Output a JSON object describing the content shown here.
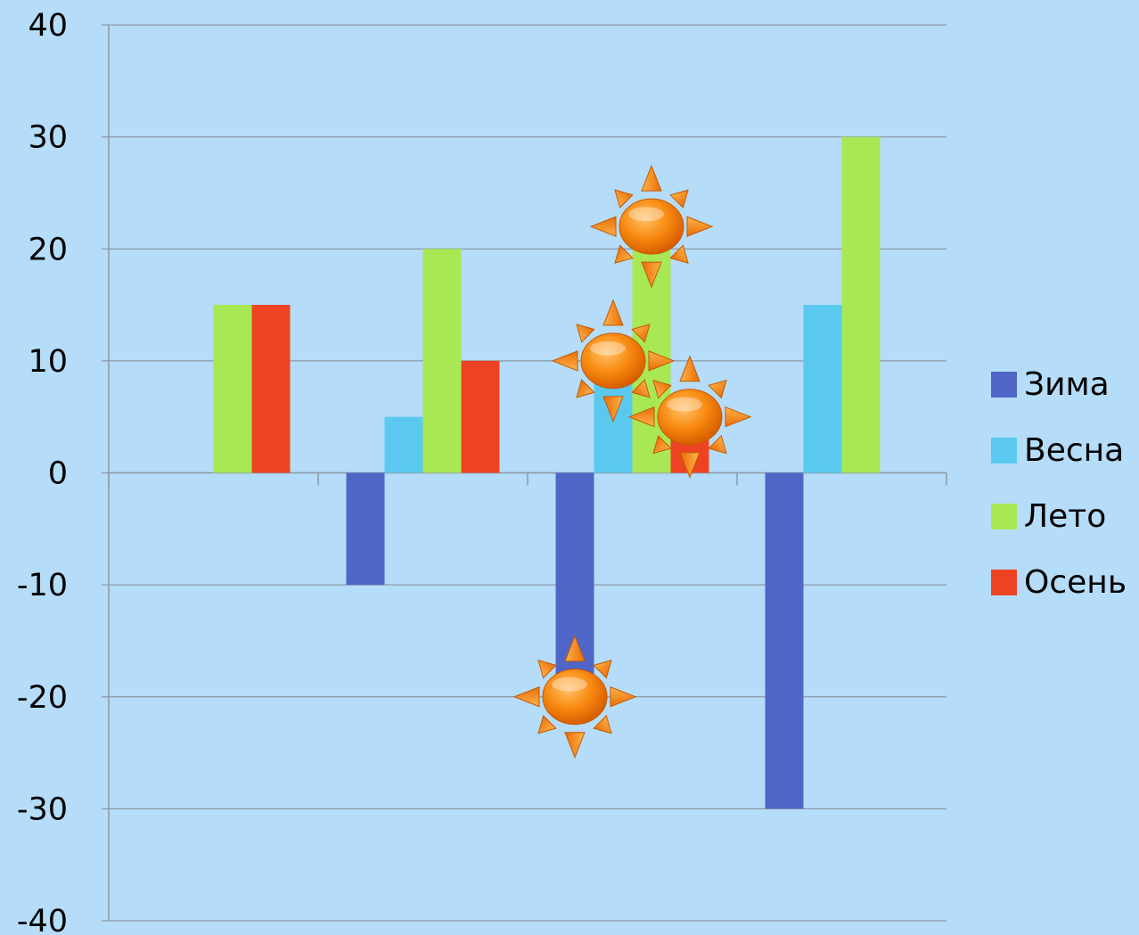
{
  "chart_data": {
    "type": "bar",
    "categories": [
      "",
      "",
      "",
      ""
    ],
    "series": [
      {
        "name": "Зима",
        "color": "#5066c6",
        "values": [
          0,
          -10,
          -20,
          -30
        ]
      },
      {
        "name": "Весна",
        "color": "#5bc9ef",
        "values": [
          0,
          5,
          10,
          15
        ]
      },
      {
        "name": "Лето",
        "color": "#a8e854",
        "values": [
          15,
          20,
          22,
          30
        ]
      },
      {
        "name": "Осень",
        "color": "#ee4322",
        "values": [
          15,
          10,
          5,
          0
        ]
      }
    ],
    "ylim": [
      -40,
      40
    ],
    "yticks": [
      "40",
      "30",
      "20",
      "10",
      "0",
      "-10",
      "-20",
      "-30",
      "-40"
    ],
    "grid": true,
    "legend_position": "right",
    "title": "",
    "xlabel": "",
    "ylabel": "",
    "decorations": [
      {
        "icon": "sun-icon",
        "series": "Лето",
        "category_index": 2
      },
      {
        "icon": "sun-icon",
        "series": "Весна",
        "category_index": 2
      },
      {
        "icon": "sun-icon",
        "series": "Осень",
        "category_index": 2
      },
      {
        "icon": "sun-icon",
        "series": "Зима",
        "category_index": 2
      }
    ]
  }
}
